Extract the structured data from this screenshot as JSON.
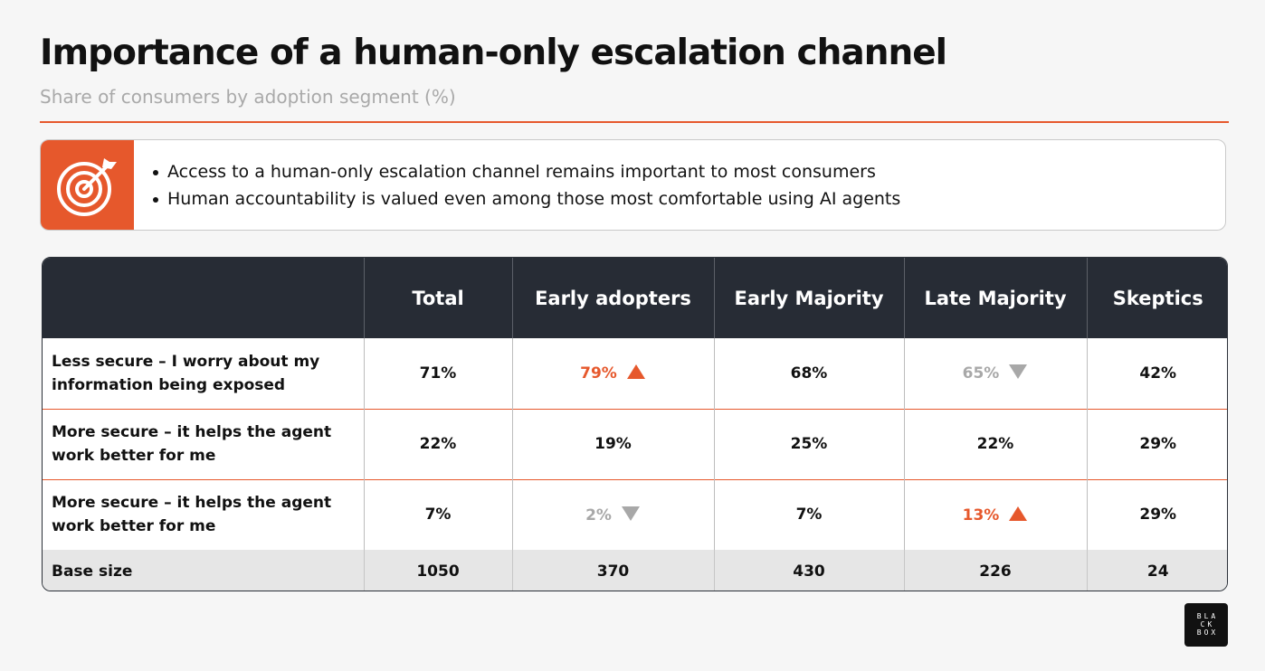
{
  "title": "Importance of a human-only escalation channel",
  "subtitle": "Share of consumers by adoption segment (%)",
  "insight": {
    "icon": "target-icon",
    "bullets": [
      "Access to a human-only escalation channel remains important to most consumers",
      "Human accountability is valued even among those most comfortable using AI agents"
    ]
  },
  "colors": {
    "accent": "#e6582c",
    "header_bg": "#272c35",
    "muted": "#a8a8a8"
  },
  "chart_data": {
    "type": "table",
    "columns": [
      "",
      "Total",
      "Early adopters",
      "Early Majority",
      "Late Majority",
      "Skeptics"
    ],
    "rows": [
      {
        "label": "Less secure – I worry about my information being exposed",
        "cells": [
          {
            "text": "71%",
            "value": 71
          },
          {
            "text": "79%",
            "value": 79,
            "flag": "up"
          },
          {
            "text": "68%",
            "value": 68
          },
          {
            "text": "65%",
            "value": 65,
            "flag": "down"
          },
          {
            "text": "42%",
            "value": 42
          }
        ]
      },
      {
        "label": "More secure – it helps the agent work better for me",
        "cells": [
          {
            "text": "22%",
            "value": 22
          },
          {
            "text": "19%",
            "value": 19
          },
          {
            "text": "25%",
            "value": 25
          },
          {
            "text": "22%",
            "value": 22
          },
          {
            "text": "29%",
            "value": 29
          }
        ]
      },
      {
        "label": "More secure – it helps the agent work better for me",
        "cells": [
          {
            "text": "7%",
            "value": 7
          },
          {
            "text": "2%",
            "value": 2,
            "flag": "down"
          },
          {
            "text": "7%",
            "value": 7
          },
          {
            "text": "13%",
            "value": 13,
            "flag": "up"
          },
          {
            "text": "29%",
            "value": 29
          }
        ]
      }
    ],
    "base": {
      "label": "Base size",
      "values": [
        "1050",
        "370",
        "430",
        "226",
        "24"
      ]
    }
  },
  "logo": {
    "lines": [
      "BLA",
      "CK",
      "BOX"
    ]
  }
}
